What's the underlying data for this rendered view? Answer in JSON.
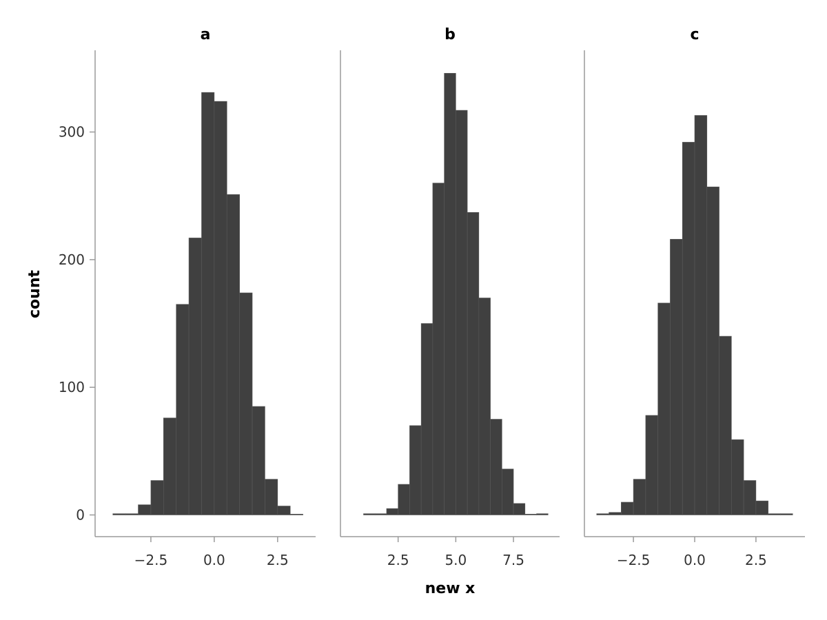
{
  "chart_data": {
    "type": "bar",
    "subtype": "histogram-faceted",
    "ylabel": "count",
    "xlabel": "new x",
    "ylim": [
      -17,
      364
    ],
    "yticks": [
      0,
      100,
      200,
      300
    ],
    "ytick_labels": [
      "0",
      "100",
      "200",
      "300"
    ],
    "bar_color": "#404040",
    "axis_color": "#9a9a9a",
    "grid": false,
    "panels": [
      {
        "title": "a",
        "xlim": [
          -4.7,
          4.0
        ],
        "xticks": [
          -2.5,
          0.0,
          2.5
        ],
        "xtick_labels": [
          "−2.5",
          "0.0",
          "2.5"
        ],
        "bin_edges": [
          -4.0,
          -3.5,
          -3.0,
          -2.5,
          -2.0,
          -1.5,
          -1.0,
          -0.5,
          0.0,
          0.5,
          1.0,
          1.5,
          2.0,
          2.5,
          3.0,
          3.5
        ],
        "counts": [
          1,
          1,
          8,
          27,
          76,
          165,
          217,
          331,
          324,
          251,
          174,
          85,
          28,
          7,
          0
        ]
      },
      {
        "title": "b",
        "xlim": [
          0.0,
          9.5
        ],
        "xticks": [
          2.5,
          5.0,
          7.5
        ],
        "xtick_labels": [
          "2.5",
          "5.0",
          "7.5"
        ],
        "bin_edges": [
          1.0,
          1.5,
          2.0,
          2.5,
          3.0,
          3.5,
          4.0,
          4.5,
          5.0,
          5.5,
          6.0,
          6.5,
          7.0,
          7.5,
          8.0,
          8.5,
          9.0
        ],
        "counts": [
          1,
          1,
          5,
          24,
          70,
          150,
          260,
          346,
          317,
          237,
          170,
          75,
          36,
          9,
          0,
          1
        ]
      },
      {
        "title": "c",
        "xlim": [
          -4.5,
          4.5
        ],
        "xticks": [
          -2.5,
          0.0,
          2.5
        ],
        "xtick_labels": [
          "−2.5",
          "0.0",
          "2.5"
        ],
        "bin_edges": [
          -4.0,
          -3.5,
          -3.0,
          -2.5,
          -2.0,
          -1.5,
          -1.0,
          -0.5,
          0.0,
          0.5,
          1.0,
          1.5,
          2.0,
          2.5,
          3.0,
          3.5,
          4.0
        ],
        "counts": [
          1,
          2,
          10,
          28,
          78,
          166,
          216,
          292,
          313,
          257,
          140,
          59,
          27,
          11,
          1,
          1
        ]
      }
    ]
  }
}
